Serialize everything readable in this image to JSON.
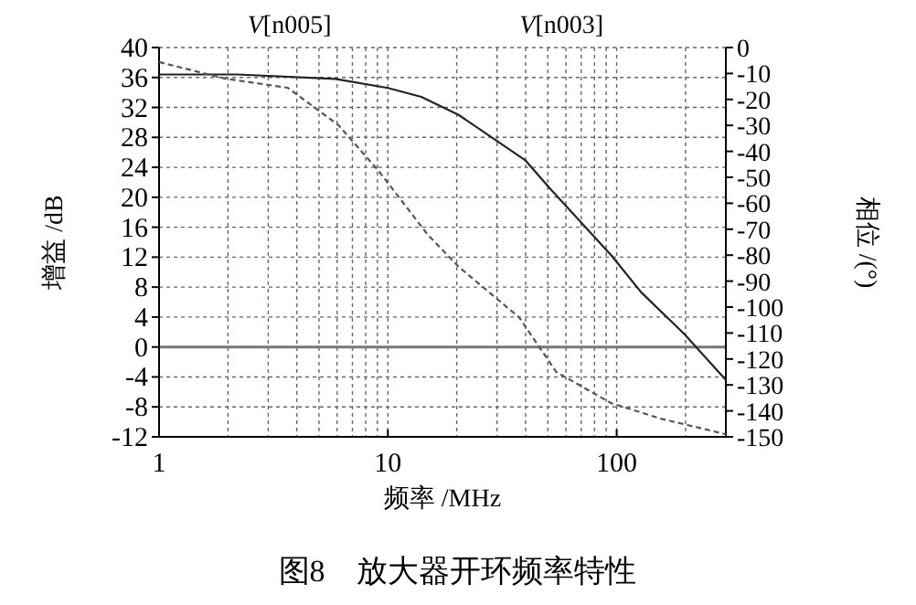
{
  "chart_data": {
    "type": "line",
    "title": "图8　放大器开环频率特性",
    "xlabel": "频率 /MHz",
    "ylabel": "增益 /dB",
    "y2label": "相位 /(°)",
    "log": "x",
    "grid": true,
    "xlim": [
      1,
      300
    ],
    "xticks": [
      1,
      10,
      100
    ],
    "ylim": [
      -12,
      40
    ],
    "yticks": [
      -12,
      -8,
      -4,
      0,
      4,
      8,
      12,
      16,
      20,
      24,
      28,
      32,
      36,
      40
    ],
    "y2lim": [
      -150,
      0
    ],
    "y2ticks": [
      -150,
      -140,
      -130,
      -120,
      -110,
      -100,
      -90,
      -80,
      -70,
      -60,
      -50,
      -40,
      -30,
      -20,
      -10,
      0
    ],
    "ref_lines": [
      {
        "axis": "y",
        "value": 0,
        "color": "#777777"
      }
    ],
    "series": [
      {
        "name": "*V*[n005]",
        "color": "#222222",
        "line_style": "solid",
        "x": [
          1,
          2.2,
          5.9,
          10,
          14,
          20.4,
          40,
          51,
          95,
          128,
          198,
          300
        ],
        "values": [
          36.4,
          36.4,
          35.8,
          34.6,
          33.4,
          31,
          24.9,
          21.2,
          12.2,
          7.3,
          1.7,
          -4.4
        ]
      },
      {
        "name": "*V*[n003]",
        "color": "#555555",
        "line_style": "dashed",
        "axis": "y2",
        "x": [
          1,
          1.95,
          3.65,
          6.1,
          9.2,
          14.9,
          20.4,
          37.5,
          54.4,
          94.5,
          156,
          300
        ],
        "values": [
          -5.6,
          -12,
          -15.5,
          -30,
          -48,
          -72,
          -84.5,
          -104,
          -125,
          -137,
          -143,
          -149
        ]
      }
    ]
  }
}
